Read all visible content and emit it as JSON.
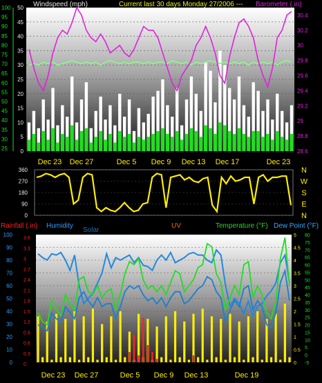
{
  "chart_data": [
    {
      "type": "line",
      "panel": "wind-barometer",
      "title_left": "Windspeed (mph)",
      "title_center": "Current last 30 days Monday 27/2006 ---",
      "title_right": "Barometer (.in)",
      "x_ticks": [
        "Dec 23",
        "Dec 27",
        "Dec 5",
        "Dec 9",
        "Dec 13",
        "Dec 17",
        "Dec 23"
      ],
      "left_axis_ticks": [
        "50",
        "45",
        "40",
        "35",
        "30",
        "25",
        "20",
        "15",
        "10",
        "5",
        "0"
      ],
      "right_axis_ticks": [
        "30.4",
        "30.2",
        "30",
        "29.8",
        "29.6",
        "29.4",
        "29.2",
        "29",
        "28.8",
        "28.6"
      ],
      "outer_axis_ticks": [
        "100",
        "95",
        "90",
        "85",
        "80",
        "75",
        "70",
        "65",
        "60",
        "55",
        "50",
        "45",
        "40",
        "35",
        "30",
        "25"
      ],
      "ylim_wind": [
        0,
        50
      ],
      "ylim_baro": [
        28.6,
        30.5
      ],
      "series": [
        {
          "name": "Barometer",
          "color": "#e020e0",
          "values": [
            29.95,
            29.7,
            29.5,
            29.4,
            29.6,
            29.9,
            30.1,
            30.2,
            30.15,
            30.3,
            30.5,
            30.4,
            30.2,
            30.1,
            30.05,
            30.15,
            30.05,
            29.9,
            29.95,
            30.0,
            29.9,
            29.85,
            29.95,
            30.1,
            30.25,
            30.2,
            30.2,
            30.1,
            29.9,
            29.7,
            29.5,
            29.4,
            29.6,
            29.7,
            29.8,
            30.0,
            30.1,
            30.25,
            30.1,
            29.9,
            29.6,
            29.5,
            29.85,
            30.1,
            30.3,
            30.35,
            30.25,
            30.1,
            29.8,
            29.6,
            29.45,
            29.7,
            30.1,
            30.2,
            30.4,
            30.45
          ]
        },
        {
          "name": "Outside humidity",
          "color": "#90f090",
          "values": [
            30,
            30.5,
            30,
            31,
            30.5,
            31,
            30,
            30.5,
            31,
            31.5,
            31,
            30.5,
            31,
            30.5,
            31,
            30,
            31,
            31.5,
            31,
            30.5,
            31,
            30.5,
            31,
            31,
            30.5,
            31,
            30.5,
            31,
            31,
            30.5,
            31.5,
            31,
            30.5,
            31,
            30,
            31,
            30.5,
            31,
            31.5,
            31,
            30.5,
            31,
            30.5,
            31,
            30.5,
            31,
            30,
            31,
            30.5,
            31,
            30.5,
            31,
            30,
            31,
            31.5,
            31
          ]
        },
        {
          "name": "Wind gust",
          "color": "#ffffff",
          "values": [
            10,
            14,
            8,
            18,
            11,
            22,
            9,
            16,
            12,
            26,
            10,
            18,
            24,
            8,
            14,
            19,
            11,
            16,
            9,
            20,
            12,
            18,
            7,
            15,
            10,
            13,
            19,
            21,
            25,
            16,
            12,
            22,
            9,
            18,
            26,
            20,
            14,
            31,
            28,
            17,
            35,
            30,
            22,
            18,
            26,
            16,
            12,
            24,
            21,
            14,
            18,
            11,
            20,
            14,
            10,
            16
          ]
        },
        {
          "name": "Wind speed",
          "color": "#22dd22",
          "values": [
            4,
            6,
            3,
            7,
            4,
            8,
            3,
            6,
            5,
            9,
            4,
            7,
            8,
            3,
            5,
            7,
            4,
            6,
            3,
            7,
            5,
            6,
            3,
            5,
            4,
            5,
            6,
            7,
            8,
            6,
            5,
            7,
            4,
            6,
            8,
            7,
            5,
            9,
            8,
            6,
            10,
            9,
            7,
            6,
            8,
            6,
            5,
            7,
            7,
            5,
            6,
            4,
            7,
            5,
            4,
            6
          ]
        }
      ]
    },
    {
      "type": "scatter",
      "panel": "wind-direction",
      "x_ticks": [],
      "left_axis_ticks": [
        "360",
        "270",
        "180",
        "90",
        "0"
      ],
      "right_labels": [
        "N",
        "W",
        "S",
        "E",
        "N"
      ],
      "ylim": [
        0,
        360
      ],
      "series": [
        {
          "name": "Wind direction",
          "color": "#ffee00",
          "values": [
            300,
            310,
            330,
            320,
            300,
            320,
            330,
            300,
            90,
            120,
            300,
            330,
            320,
            60,
            30,
            60,
            40,
            30,
            60,
            100,
            60,
            30,
            40,
            90,
            100,
            300,
            330,
            320,
            60,
            300,
            310,
            320,
            280,
            300,
            270,
            260,
            290,
            300,
            80,
            30,
            300,
            250,
            310,
            270,
            280,
            300,
            300,
            90,
            300,
            320,
            270,
            300,
            300,
            310,
            310,
            80
          ]
        }
      ]
    },
    {
      "type": "line",
      "panel": "rain-humidity-temperature",
      "legend": [
        {
          "label": "Rainfall (.in)",
          "color": "#ff2020"
        },
        {
          "label": "Humidity",
          "color": "#3399ff"
        },
        {
          "label": "Solar",
          "color": "#1f6fc0"
        },
        {
          "label": "UV",
          "color": "#ff6600"
        },
        {
          "label": "Temperature (°F)",
          "color": "#22dd22"
        },
        {
          "label": "Dew Point (°F)",
          "color": "#33aaff"
        }
      ],
      "x_ticks": [
        "Dec 23",
        "Dec 27",
        "Dec 5",
        "Dec 9",
        "Dec 13",
        "Dec 19"
      ],
      "humidity_axis_ticks": [
        "100",
        "90",
        "80",
        "70",
        "60",
        "50",
        "40",
        "30",
        "20",
        "10",
        "0"
      ],
      "rain_axis_ticks": [
        "3.6",
        "3.3",
        "3",
        "2.7",
        "2.4",
        "2.1",
        "1.8",
        "1.5",
        "1.2",
        "0.9",
        "0.6",
        "0.3",
        "0"
      ],
      "uv_axis_ticks": [
        "5",
        "4.5",
        "4",
        "3.5",
        "3",
        "2.5",
        "2",
        "1.5",
        "1",
        "0.5",
        "0"
      ],
      "temp_axis_ticks": [
        "80",
        "75",
        "70",
        "65",
        "60",
        "55",
        "50",
        "45",
        "40",
        "35",
        "30",
        "25",
        "20",
        "15",
        "10",
        "5",
        "0",
        "-5"
      ],
      "ylim_temp": [
        -5,
        80
      ],
      "series": [
        {
          "name": "Humidity",
          "color": "#2288dd",
          "values": [
            85,
            82,
            80,
            85,
            84,
            86,
            80,
            72,
            84,
            60,
            46,
            50,
            54,
            62,
            70,
            85,
            74,
            82,
            80,
            82,
            84,
            78,
            82,
            76,
            75,
            72,
            80,
            84,
            80,
            86,
            78,
            80,
            82,
            85,
            86,
            84,
            84,
            80,
            78,
            88,
            84,
            60,
            44,
            50,
            46,
            38,
            48,
            36,
            44,
            46,
            52,
            56,
            62,
            78,
            84,
            62
          ]
        },
        {
          "name": "Temperature",
          "color": "#22dd22",
          "values": [
            28,
            22,
            20,
            36,
            30,
            26,
            40,
            34,
            30,
            50,
            52,
            42,
            40,
            46,
            38,
            42,
            44,
            30,
            40,
            54,
            62,
            60,
            64,
            50,
            44,
            46,
            42,
            46,
            40,
            48,
            56,
            54,
            42,
            46,
            50,
            58,
            60,
            74,
            72,
            54,
            48,
            30,
            38,
            46,
            40,
            60,
            62,
            38,
            46,
            40,
            28,
            24,
            36,
            64,
            78,
            46
          ]
        },
        {
          "name": "Dew Point",
          "color": "#1a7fd0",
          "values": [
            20,
            18,
            16,
            28,
            24,
            22,
            32,
            28,
            24,
            38,
            42,
            36,
            32,
            38,
            32,
            34,
            34,
            24,
            32,
            42,
            46,
            44,
            46,
            40,
            36,
            38,
            34,
            38,
            32,
            38,
            42,
            42,
            34,
            36,
            40,
            44,
            46,
            52,
            50,
            42,
            38,
            22,
            30,
            36,
            32,
            44,
            46,
            30,
            36,
            32,
            20,
            18,
            28,
            48,
            56,
            36
          ]
        },
        {
          "name": "Solar",
          "color": "#ffee00",
          "values": [
            1.8,
            0.2,
            1.6,
            0.1,
            1.9,
            0.2,
            1.7,
            0.2,
            2.0,
            0.1,
            1.8,
            0.2,
            2.1,
            0.1,
            1.5,
            0.2,
            1.8,
            0.1,
            2.0,
            0.2,
            1.2,
            0.1,
            1.9,
            0.2,
            1.7,
            0.1,
            1.4,
            0.2,
            1.8,
            0.1,
            2.0,
            0.2,
            1.6,
            0.1,
            1.9,
            0.2,
            2.1,
            0.1,
            1.8,
            0.2,
            1.7,
            0.1,
            1.9,
            0.2,
            1.6,
            0.1,
            1.8,
            0.2,
            2.0,
            0.1,
            1.7,
            0.2,
            1.9,
            0.1,
            2.3,
            0.2
          ]
        },
        {
          "name": "Rainfall",
          "color": "#ff2020",
          "values": [
            0,
            0,
            0,
            0,
            0,
            0,
            0,
            0,
            0,
            0,
            0,
            0,
            0,
            0,
            0,
            0,
            0,
            0,
            0,
            0,
            0.3,
            0.8,
            0.2,
            1.3,
            0.5,
            0.3,
            0.1,
            0,
            0,
            0,
            0,
            0,
            0,
            0,
            0.2,
            0,
            0,
            0,
            0,
            0,
            0,
            0,
            0,
            0,
            0,
            0,
            0,
            0,
            0,
            0,
            0,
            0,
            0,
            0,
            0,
            0
          ]
        }
      ]
    }
  ]
}
